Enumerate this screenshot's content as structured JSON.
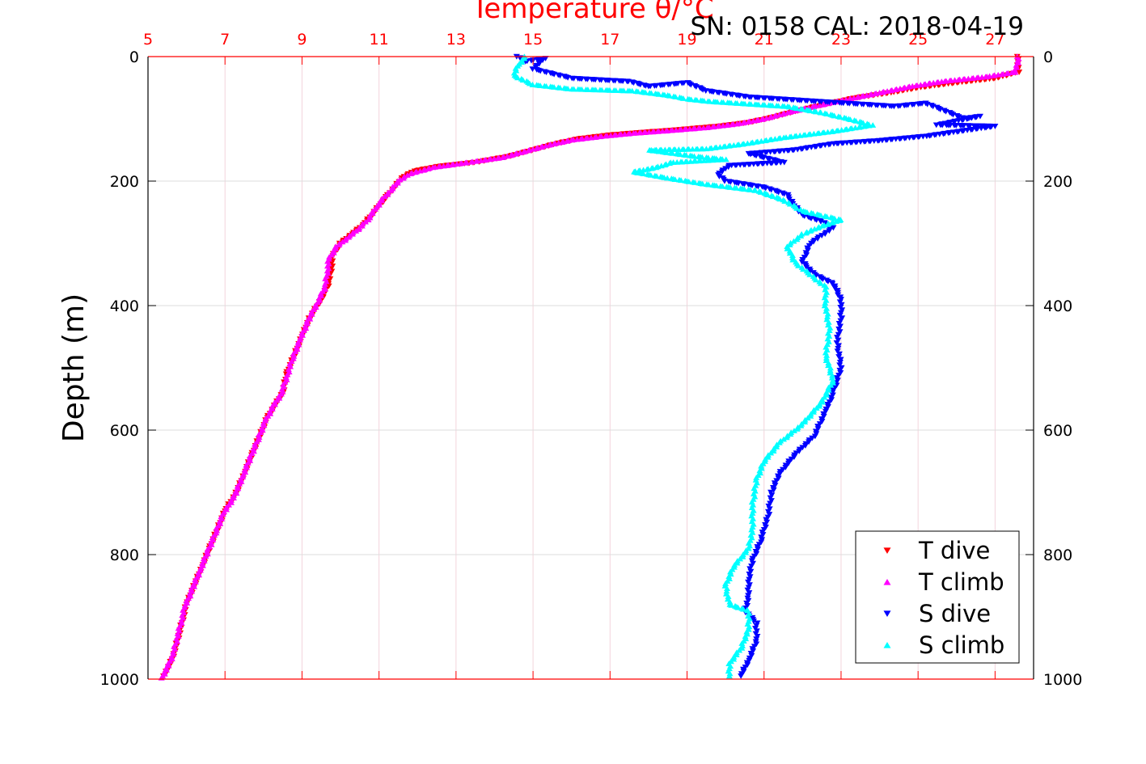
{
  "chart_data": {
    "type": "scatter",
    "title": "Temperature θ/°C",
    "subtitle": "SN: 0158  CAL: 2018-04-19",
    "xlabel": "Temperature θ/°C",
    "ylabel": "Depth (m)",
    "xlim": [
      5,
      28
    ],
    "ylim": [
      0,
      1000
    ],
    "y_reversed": true,
    "x_ticks": [
      "5",
      "7",
      "9",
      "11",
      "13",
      "15",
      "17",
      "19",
      "21",
      "23",
      "25",
      "27"
    ],
    "y_ticks": [
      "0",
      "200",
      "400",
      "600",
      "800",
      "1000"
    ],
    "grid": true,
    "legend_position": "bottom-right",
    "series": [
      {
        "name": "T dive",
        "color": "#ff0000",
        "marker": "triangle-down",
        "points": [
          [
            27.6,
            0
          ],
          [
            27.6,
            10
          ],
          [
            27.6,
            25
          ],
          [
            27.0,
            35
          ],
          [
            26.0,
            42
          ],
          [
            25.0,
            50
          ],
          [
            24.3,
            58
          ],
          [
            23.4,
            66
          ],
          [
            22.5,
            78
          ],
          [
            21.8,
            88
          ],
          [
            21.2,
            98
          ],
          [
            20.6,
            106
          ],
          [
            19.8,
            112
          ],
          [
            18.7,
            118
          ],
          [
            17.8,
            122
          ],
          [
            17.0,
            126
          ],
          [
            16.2,
            132
          ],
          [
            15.6,
            140
          ],
          [
            15.0,
            150
          ],
          [
            14.4,
            160
          ],
          [
            13.5,
            170
          ],
          [
            12.6,
            176
          ],
          [
            11.9,
            184
          ],
          [
            11.6,
            195
          ],
          [
            11.4,
            210
          ],
          [
            11.2,
            225
          ],
          [
            11.0,
            240
          ],
          [
            10.8,
            255
          ],
          [
            10.6,
            270
          ],
          [
            10.3,
            285
          ],
          [
            10.0,
            300
          ],
          [
            9.8,
            320
          ],
          [
            9.75,
            345
          ],
          [
            9.7,
            365
          ],
          [
            9.5,
            390
          ],
          [
            9.2,
            420
          ],
          [
            9.0,
            450
          ],
          [
            8.8,
            480
          ],
          [
            8.6,
            510
          ],
          [
            8.5,
            540
          ],
          [
            8.3,
            560
          ],
          [
            8.1,
            580
          ],
          [
            7.9,
            610
          ],
          [
            7.7,
            640
          ],
          [
            7.5,
            670
          ],
          [
            7.3,
            700
          ],
          [
            7.0,
            730
          ],
          [
            6.8,
            760
          ],
          [
            6.6,
            790
          ],
          [
            6.4,
            820
          ],
          [
            6.2,
            850
          ],
          [
            6.0,
            880
          ],
          [
            5.9,
            905
          ],
          [
            5.8,
            930
          ],
          [
            5.7,
            955
          ],
          [
            5.55,
            980
          ],
          [
            5.4,
            995
          ]
        ]
      },
      {
        "name": "T climb",
        "color": "#ff00ff",
        "marker": "triangle-up",
        "points": [
          [
            27.6,
            0
          ],
          [
            27.6,
            10
          ],
          [
            27.5,
            25
          ],
          [
            26.8,
            32
          ],
          [
            25.6,
            40
          ],
          [
            24.8,
            48
          ],
          [
            24.0,
            58
          ],
          [
            23.2,
            68
          ],
          [
            22.3,
            80
          ],
          [
            21.6,
            90
          ],
          [
            21.0,
            100
          ],
          [
            20.3,
            108
          ],
          [
            19.5,
            114
          ],
          [
            18.5,
            119
          ],
          [
            17.6,
            123
          ],
          [
            16.8,
            128
          ],
          [
            16.0,
            134
          ],
          [
            15.4,
            142
          ],
          [
            14.8,
            152
          ],
          [
            14.2,
            162
          ],
          [
            13.3,
            170
          ],
          [
            12.4,
            178
          ],
          [
            11.8,
            188
          ],
          [
            11.5,
            200
          ],
          [
            11.3,
            215
          ],
          [
            11.1,
            228
          ],
          [
            10.9,
            245
          ],
          [
            10.7,
            262
          ],
          [
            10.5,
            275
          ],
          [
            10.2,
            290
          ],
          [
            9.9,
            305
          ],
          [
            9.7,
            325
          ],
          [
            9.65,
            348
          ],
          [
            9.6,
            370
          ],
          [
            9.4,
            395
          ],
          [
            9.15,
            425
          ],
          [
            8.95,
            455
          ],
          [
            8.75,
            485
          ],
          [
            8.6,
            515
          ],
          [
            8.45,
            542
          ],
          [
            8.25,
            562
          ],
          [
            8.05,
            585
          ],
          [
            7.85,
            615
          ],
          [
            7.65,
            645
          ],
          [
            7.45,
            675
          ],
          [
            7.25,
            705
          ],
          [
            6.95,
            735
          ],
          [
            6.75,
            765
          ],
          [
            6.55,
            795
          ],
          [
            6.35,
            825
          ],
          [
            6.15,
            855
          ],
          [
            5.95,
            885
          ],
          [
            5.85,
            910
          ],
          [
            5.75,
            935
          ],
          [
            5.65,
            960
          ],
          [
            5.5,
            982
          ],
          [
            5.35,
            998
          ]
        ]
      },
      {
        "name": "S dive",
        "color": "#0000ff",
        "marker": "triangle-down",
        "points": [
          [
            14.6,
            0
          ],
          [
            14.8,
            8
          ],
          [
            15.3,
            3
          ],
          [
            15.0,
            20
          ],
          [
            16.0,
            35
          ],
          [
            17.5,
            40
          ],
          [
            18.0,
            48
          ],
          [
            19.0,
            42
          ],
          [
            19.5,
            55
          ],
          [
            20.6,
            65
          ],
          [
            24.4,
            80
          ],
          [
            25.2,
            75
          ],
          [
            25.8,
            90
          ],
          [
            26.2,
            100
          ],
          [
            26.6,
            96
          ],
          [
            25.5,
            110
          ],
          [
            27.0,
            112
          ],
          [
            25.2,
            128
          ],
          [
            24.0,
            135
          ],
          [
            22.8,
            140
          ],
          [
            21.8,
            150
          ],
          [
            20.6,
            156
          ],
          [
            21.5,
            170
          ],
          [
            20.1,
            175
          ],
          [
            19.8,
            190
          ],
          [
            20.0,
            200
          ],
          [
            21.0,
            210
          ],
          [
            21.6,
            222
          ],
          [
            21.8,
            240
          ],
          [
            22.0,
            255
          ],
          [
            22.5,
            265
          ],
          [
            22.8,
            275
          ],
          [
            22.2,
            300
          ],
          [
            22.0,
            330
          ],
          [
            22.3,
            350
          ],
          [
            22.8,
            365
          ],
          [
            23.0,
            390
          ],
          [
            23.0,
            420
          ],
          [
            22.9,
            460
          ],
          [
            23.0,
            500
          ],
          [
            22.8,
            540
          ],
          [
            22.6,
            570
          ],
          [
            22.3,
            610
          ],
          [
            21.8,
            640
          ],
          [
            21.4,
            670
          ],
          [
            21.2,
            700
          ],
          [
            21.1,
            740
          ],
          [
            20.9,
            780
          ],
          [
            20.7,
            810
          ],
          [
            20.6,
            840
          ],
          [
            20.6,
            870
          ],
          [
            20.5,
            890
          ],
          [
            20.8,
            910
          ],
          [
            20.8,
            940
          ],
          [
            20.6,
            970
          ],
          [
            20.4,
            995
          ]
        ]
      },
      {
        "name": "S climb",
        "color": "#00ffff",
        "marker": "triangle-up",
        "points": [
          [
            14.8,
            0
          ],
          [
            14.6,
            15
          ],
          [
            14.5,
            30
          ],
          [
            15.0,
            45
          ],
          [
            16.0,
            52
          ],
          [
            17.6,
            55
          ],
          [
            18.5,
            62
          ],
          [
            19.0,
            68
          ],
          [
            19.6,
            72
          ],
          [
            21.6,
            80
          ],
          [
            22.5,
            90
          ],
          [
            23.2,
            100
          ],
          [
            23.8,
            110
          ],
          [
            22.8,
            120
          ],
          [
            21.5,
            130
          ],
          [
            20.5,
            140
          ],
          [
            19.5,
            148
          ],
          [
            18.0,
            150
          ],
          [
            19.2,
            160
          ],
          [
            20.0,
            165
          ],
          [
            18.6,
            170
          ],
          [
            18.2,
            178
          ],
          [
            17.6,
            185
          ],
          [
            18.5,
            195
          ],
          [
            19.5,
            205
          ],
          [
            20.8,
            215
          ],
          [
            21.5,
            230
          ],
          [
            22.0,
            248
          ],
          [
            23.0,
            262
          ],
          [
            22.5,
            272
          ],
          [
            22.0,
            285
          ],
          [
            21.6,
            305
          ],
          [
            21.8,
            330
          ],
          [
            22.2,
            350
          ],
          [
            22.6,
            370
          ],
          [
            22.6,
            400
          ],
          [
            22.7,
            440
          ],
          [
            22.6,
            480
          ],
          [
            22.8,
            520
          ],
          [
            22.5,
            555
          ],
          [
            22.0,
            590
          ],
          [
            21.4,
            620
          ],
          [
            21.0,
            650
          ],
          [
            20.8,
            680
          ],
          [
            20.7,
            720
          ],
          [
            20.7,
            760
          ],
          [
            20.6,
            790
          ],
          [
            20.2,
            820
          ],
          [
            20.0,
            850
          ],
          [
            20.1,
            880
          ],
          [
            20.6,
            890
          ],
          [
            20.6,
            920
          ],
          [
            20.4,
            950
          ],
          [
            20.1,
            975
          ],
          [
            20.1,
            995
          ]
        ]
      }
    ]
  }
}
